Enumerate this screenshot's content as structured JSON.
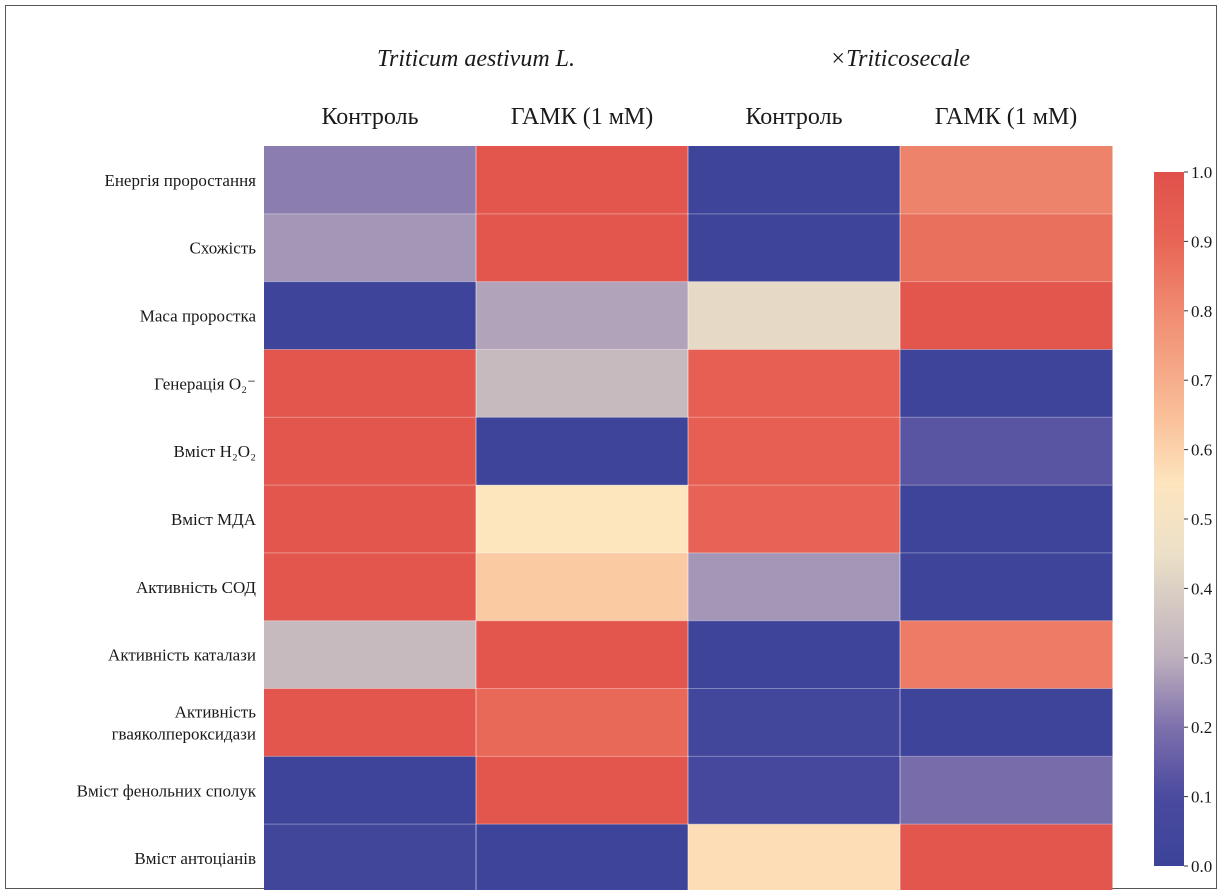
{
  "chart_data": {
    "type": "heatmap",
    "groups": [
      "Triticum aestivum L.",
      "×Triticosecale"
    ],
    "columns": [
      "Контроль",
      "ГАМК (1 мМ)",
      "Контроль",
      "ГАМК (1 мМ)"
    ],
    "rows": [
      {
        "label": [
          "Енергія проростання"
        ],
        "values": [
          0.22,
          0.97,
          0.02,
          0.82
        ]
      },
      {
        "label": [
          "Схожість"
        ],
        "values": [
          0.26,
          0.97,
          0.02,
          0.87
        ]
      },
      {
        "label": [
          "Маса проростка"
        ],
        "values": [
          0.02,
          0.28,
          0.43,
          0.97
        ]
      },
      {
        "label": [
          "Генерація O₂⁻"
        ],
        "values": [
          0.97,
          0.33,
          0.93,
          0.02
        ]
      },
      {
        "label": [
          "Вміст H₂O₂"
        ],
        "values": [
          0.97,
          0.02,
          0.93,
          0.13
        ]
      },
      {
        "label": [
          "Вміст МДА"
        ],
        "values": [
          0.97,
          0.55,
          0.91,
          0.02
        ]
      },
      {
        "label": [
          "Активність СОД"
        ],
        "values": [
          0.97,
          0.62,
          0.26,
          0.02
        ]
      },
      {
        "label": [
          "Активність каталази"
        ],
        "values": [
          0.33,
          0.97,
          0.02,
          0.84
        ]
      },
      {
        "label": [
          "Активність",
          "гваяколпероксидази"
        ],
        "values": [
          0.97,
          0.89,
          0.05,
          0.02
        ]
      },
      {
        "label": [
          "Вміст фенольних сполук"
        ],
        "values": [
          0.02,
          0.97,
          0.07,
          0.19
        ]
      },
      {
        "label": [
          "Вміст антоціанів"
        ],
        "values": [
          0.04,
          0.02,
          0.57,
          0.97
        ]
      }
    ],
    "colorbar": {
      "min": 0.0,
      "max": 1.0,
      "ticks": [
        "0.0",
        "0.1",
        "0.2",
        "0.3",
        "0.4",
        "0.5",
        "0.6",
        "0.7",
        "0.8",
        "0.9",
        "1.0"
      ]
    },
    "colormap": {
      "low": "#3b4399",
      "mid": "#fdf3cd",
      "high": "#e0504a"
    },
    "grid": false,
    "legend": "right"
  }
}
